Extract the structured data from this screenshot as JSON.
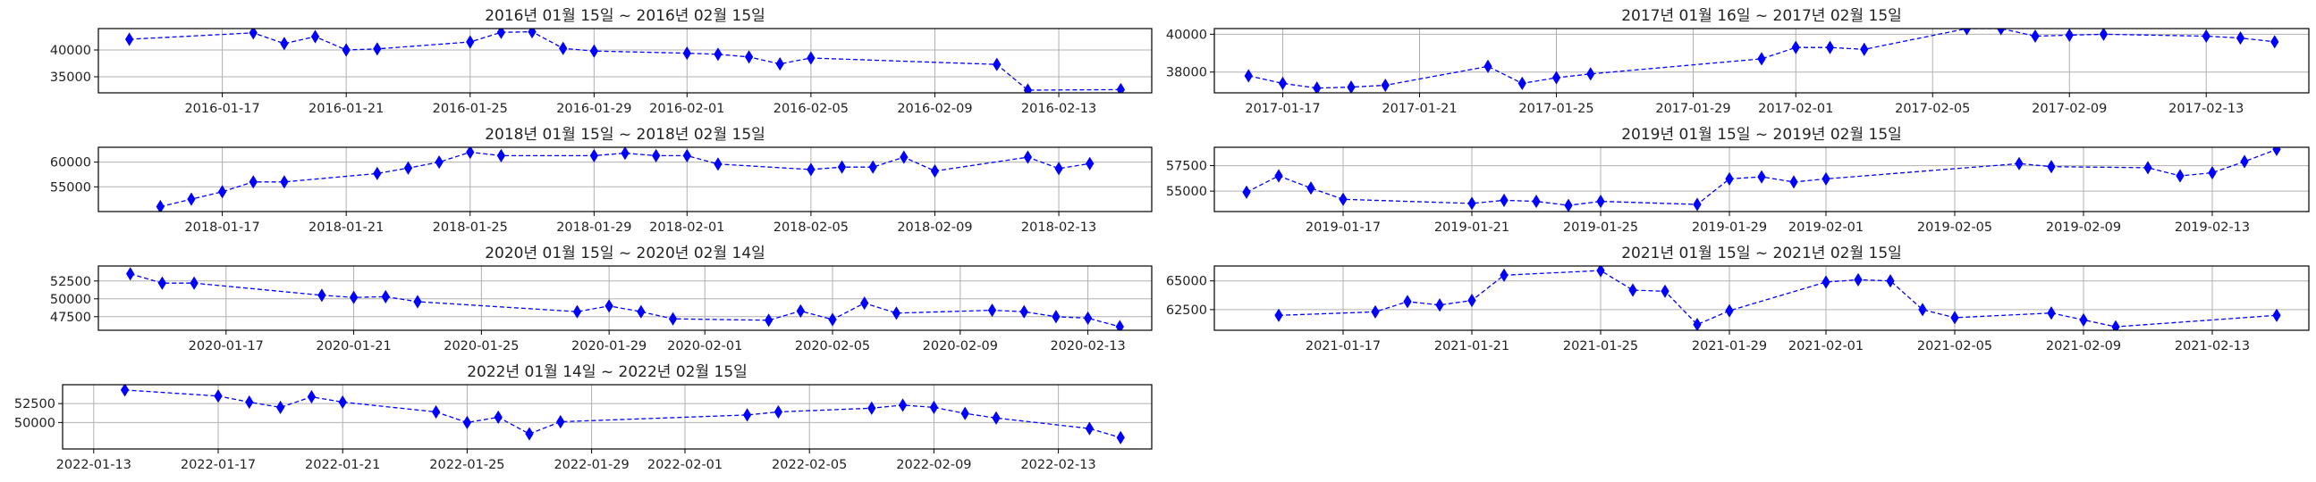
{
  "chart_data": [
    {
      "type": "line",
      "title": "2016년 01월 15일 ~ 2016년 02월 15일",
      "xlabel": "",
      "ylabel": "",
      "grid": true,
      "series_color": "#0000ff",
      "marker": "thin_diamond",
      "line_style": "dashed",
      "x_range": [
        "2016-01-13",
        "2016-02-16"
      ],
      "ylim": [
        32000,
        44000
      ],
      "x_ticks": [
        "2016-01-17",
        "2016-01-21",
        "2016-01-25",
        "2016-01-29",
        "2016-02-01",
        "2016-02-05",
        "2016-02-09",
        "2016-02-13"
      ],
      "y_ticks": [
        35000,
        40000
      ],
      "y_tick_labels": [
        "35000",
        "40000"
      ],
      "x": [
        "2016-01-14",
        "2016-01-18",
        "2016-01-19",
        "2016-01-20",
        "2016-01-21",
        "2016-01-22",
        "2016-01-25",
        "2016-01-26",
        "2016-01-27",
        "2016-01-28",
        "2016-01-29",
        "2016-02-01",
        "2016-02-02",
        "2016-02-03",
        "2016-02-04",
        "2016-02-05",
        "2016-02-11",
        "2016-02-12",
        "2016-02-15"
      ],
      "values": [
        42000,
        43200,
        41200,
        42500,
        40000,
        40200,
        41500,
        43300,
        43400,
        40300,
        39800,
        39400,
        39200,
        38700,
        37400,
        38500,
        37300,
        32500,
        32600
      ]
    },
    {
      "type": "line",
      "title": "2017년 01월 16일 ~ 2017년 02월 15일",
      "xlabel": "",
      "ylabel": "",
      "grid": true,
      "series_color": "#0000ff",
      "marker": "thin_diamond",
      "line_style": "dashed",
      "x_range": [
        "2017-01-15",
        "2017-02-16"
      ],
      "ylim": [
        36900,
        40300
      ],
      "x_ticks": [
        "2017-01-17",
        "2017-01-21",
        "2017-01-25",
        "2017-01-29",
        "2017-02-01",
        "2017-02-05",
        "2017-02-09",
        "2017-02-13"
      ],
      "y_ticks": [
        38000,
        40000
      ],
      "y_tick_labels": [
        "38000",
        "40000"
      ],
      "x": [
        "2017-01-16",
        "2017-01-17",
        "2017-01-18",
        "2017-01-19",
        "2017-01-20",
        "2017-01-23",
        "2017-01-24",
        "2017-01-25",
        "2017-01-26",
        "2017-01-31",
        "2017-02-01",
        "2017-02-02",
        "2017-02-03",
        "2017-02-06",
        "2017-02-07",
        "2017-02-08",
        "2017-02-09",
        "2017-02-10",
        "2017-02-13",
        "2017-02-14",
        "2017-02-15"
      ],
      "values": [
        37800,
        37400,
        37150,
        37200,
        37300,
        38300,
        37400,
        37700,
        37900,
        38700,
        39300,
        39300,
        39200,
        40300,
        40300,
        39900,
        39950,
        40000,
        39900,
        39800,
        39600
      ]
    },
    {
      "type": "line",
      "title": "2018년 01월 15일 ~ 2018년 02월 15일",
      "xlabel": "",
      "ylabel": "",
      "grid": true,
      "series_color": "#0000ff",
      "marker": "thin_diamond",
      "line_style": "dashed",
      "x_range": [
        "2018-01-13",
        "2018-02-16"
      ],
      "ylim": [
        50000,
        63000
      ],
      "x_ticks": [
        "2018-01-17",
        "2018-01-21",
        "2018-01-25",
        "2018-01-29",
        "2018-02-01",
        "2018-02-05",
        "2018-02-09",
        "2018-02-13"
      ],
      "y_ticks": [
        55000,
        60000
      ],
      "y_tick_labels": [
        "55000",
        "60000"
      ],
      "x": [
        "2018-01-15",
        "2018-01-16",
        "2018-01-17",
        "2018-01-18",
        "2018-01-19",
        "2018-01-22",
        "2018-01-23",
        "2018-01-24",
        "2018-01-25",
        "2018-01-26",
        "2018-01-29",
        "2018-01-30",
        "2018-01-31",
        "2018-02-01",
        "2018-02-02",
        "2018-02-05",
        "2018-02-06",
        "2018-02-07",
        "2018-02-08",
        "2018-02-09",
        "2018-02-12",
        "2018-02-13",
        "2018-02-14"
      ],
      "values": [
        51000,
        52500,
        54000,
        56000,
        56000,
        57700,
        58800,
        60000,
        62000,
        61300,
        61300,
        61800,
        61300,
        61300,
        59600,
        58500,
        59000,
        59000,
        61000,
        58200,
        61000,
        58700,
        59700
      ]
    },
    {
      "type": "line",
      "title": "2019년 01월 15일 ~ 2019년 02월 15일",
      "xlabel": "",
      "ylabel": "",
      "grid": true,
      "series_color": "#0000ff",
      "marker": "thin_diamond",
      "line_style": "dashed",
      "x_range": [
        "2019-01-13",
        "2019-02-16"
      ],
      "ylim": [
        53000,
        59300
      ],
      "x_ticks": [
        "2019-01-17",
        "2019-01-21",
        "2019-01-25",
        "2019-01-29",
        "2019-02-01",
        "2019-02-05",
        "2019-02-09",
        "2019-02-13"
      ],
      "y_ticks": [
        55000,
        57500
      ],
      "y_tick_labels": [
        "55000",
        "57500"
      ],
      "x": [
        "2019-01-14",
        "2019-01-15",
        "2019-01-16",
        "2019-01-17",
        "2019-01-21",
        "2019-01-22",
        "2019-01-23",
        "2019-01-24",
        "2019-01-25",
        "2019-01-28",
        "2019-01-29",
        "2019-01-30",
        "2019-01-31",
        "2019-02-01",
        "2019-02-07",
        "2019-02-08",
        "2019-02-11",
        "2019-02-12",
        "2019-02-13",
        "2019-02-14",
        "2019-02-15"
      ],
      "values": [
        54900,
        56500,
        55300,
        54200,
        53800,
        54100,
        54000,
        53600,
        54000,
        53700,
        56200,
        56400,
        55900,
        56200,
        57700,
        57400,
        57300,
        56500,
        56800,
        57900,
        59100
      ]
    },
    {
      "type": "line",
      "title": "2020년 01월 15일 ~ 2020년 02월 14일",
      "xlabel": "",
      "ylabel": "",
      "grid": true,
      "series_color": "#0000ff",
      "marker": "thin_diamond",
      "line_style": "dashed",
      "x_range": [
        "2020-01-13",
        "2020-02-15"
      ],
      "ylim": [
        45600,
        54600
      ],
      "x_ticks": [
        "2020-01-17",
        "2020-01-21",
        "2020-01-25",
        "2020-01-29",
        "2020-02-01",
        "2020-02-05",
        "2020-02-09",
        "2020-02-13"
      ],
      "y_ticks": [
        47500,
        50000,
        52500
      ],
      "y_tick_labels": [
        "47500",
        "50000",
        "52500"
      ],
      "x": [
        "2020-01-14",
        "2020-01-15",
        "2020-01-16",
        "2020-01-20",
        "2020-01-21",
        "2020-01-22",
        "2020-01-23",
        "2020-01-28",
        "2020-01-29",
        "2020-01-30",
        "2020-01-31",
        "2020-02-03",
        "2020-02-04",
        "2020-02-05",
        "2020-02-06",
        "2020-02-07",
        "2020-02-10",
        "2020-02-11",
        "2020-02-12",
        "2020-02-13",
        "2020-02-14"
      ],
      "values": [
        53500,
        52200,
        52200,
        50500,
        50200,
        50300,
        49600,
        48200,
        49000,
        48200,
        47200,
        47000,
        48300,
        47100,
        49400,
        48000,
        48400,
        48200,
        47500,
        47300,
        46100
      ]
    },
    {
      "type": "line",
      "title": "2021년 01월 15일 ~ 2021년 02월 15일",
      "xlabel": "",
      "ylabel": "",
      "grid": true,
      "series_color": "#0000ff",
      "marker": "thin_diamond",
      "line_style": "dashed",
      "x_range": [
        "2021-01-13",
        "2021-02-16"
      ],
      "ylim": [
        60700,
        66300
      ],
      "x_ticks": [
        "2021-01-17",
        "2021-01-21",
        "2021-01-25",
        "2021-01-29",
        "2021-02-01",
        "2021-02-05",
        "2021-02-09",
        "2021-02-13"
      ],
      "y_ticks": [
        62500,
        65000
      ],
      "y_tick_labels": [
        "62500",
        "65000"
      ],
      "x": [
        "2021-01-15",
        "2021-01-18",
        "2021-01-19",
        "2021-01-20",
        "2021-01-21",
        "2021-01-22",
        "2021-01-25",
        "2021-01-26",
        "2021-01-27",
        "2021-01-28",
        "2021-01-29",
        "2021-02-01",
        "2021-02-02",
        "2021-02-03",
        "2021-02-04",
        "2021-02-05",
        "2021-02-08",
        "2021-02-09",
        "2021-02-10",
        "2021-02-15"
      ],
      "values": [
        62000,
        62300,
        63200,
        62900,
        63300,
        65500,
        65900,
        64200,
        64100,
        61200,
        62400,
        64900,
        65100,
        65000,
        62500,
        61800,
        62200,
        61600,
        61000,
        62000
      ]
    },
    {
      "type": "line",
      "title": "2022년 01월 14일 ~ 2022년 02월 15일",
      "xlabel": "",
      "ylabel": "",
      "grid": true,
      "series_color": "#0000ff",
      "marker": "thin_diamond",
      "line_style": "dashed",
      "x_range": [
        "2022-01-12",
        "2022-02-16"
      ],
      "ylim": [
        46500,
        55000
      ],
      "x_ticks": [
        "2022-01-13",
        "2022-01-17",
        "2022-01-21",
        "2022-01-25",
        "2022-01-29",
        "2022-02-01",
        "2022-02-05",
        "2022-02-09",
        "2022-02-13"
      ],
      "y_ticks": [
        50000,
        52500
      ],
      "y_tick_labels": [
        "50000",
        "52500"
      ],
      "x": [
        "2022-01-14",
        "2022-01-17",
        "2022-01-18",
        "2022-01-19",
        "2022-01-20",
        "2022-01-21",
        "2022-01-24",
        "2022-01-25",
        "2022-01-26",
        "2022-01-27",
        "2022-01-28",
        "2022-02-03",
        "2022-02-04",
        "2022-02-07",
        "2022-02-08",
        "2022-02-09",
        "2022-02-10",
        "2022-02-11",
        "2022-02-14",
        "2022-02-15"
      ],
      "values": [
        54300,
        53500,
        52700,
        52000,
        53400,
        52700,
        51400,
        50000,
        50700,
        48500,
        50100,
        51000,
        51400,
        51900,
        52300,
        52000,
        51200,
        50600,
        49200,
        48000
      ]
    }
  ]
}
